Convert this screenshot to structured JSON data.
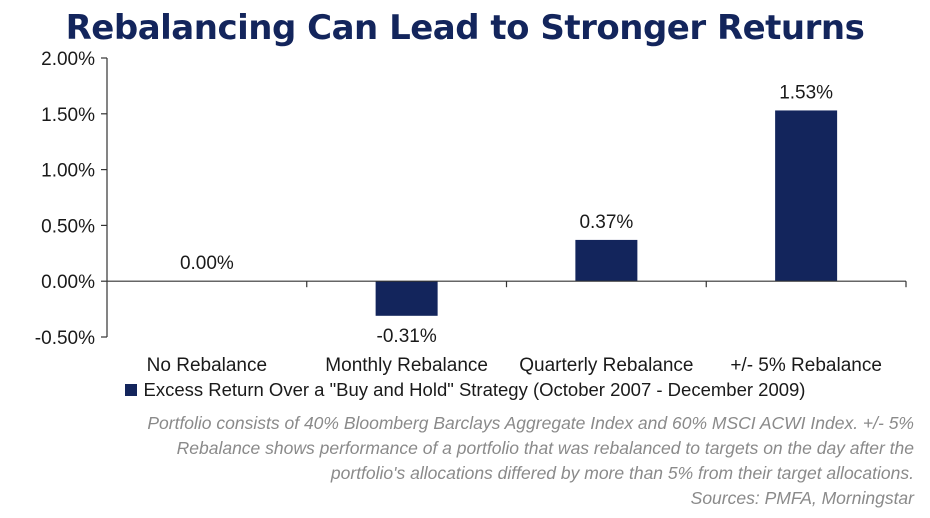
{
  "chart_data": {
    "type": "bar",
    "title": "Rebalancing Can Lead to Stronger Returns",
    "categories": [
      "No Rebalance",
      "Monthly Rebalance",
      "Quarterly Rebalance",
      "+/- 5% Rebalance"
    ],
    "series": [
      {
        "name": "Excess Return Over a \"Buy and Hold\" Strategy (October 2007 - December 2009)",
        "values": [
          0.0,
          -0.31,
          0.37,
          1.53
        ],
        "labels": [
          "0.00%",
          "-0.31%",
          "0.37%",
          "1.53%"
        ],
        "color": "#13255c"
      }
    ],
    "ylim": [
      -0.5,
      2.0
    ],
    "yticks": [
      2.0,
      1.5,
      1.0,
      0.5,
      0.0,
      -0.5
    ],
    "ytick_labels": [
      "2.00%",
      "1.50%",
      "1.00%",
      "0.50%",
      "0.00%",
      "-0.50%"
    ],
    "xlabel": "",
    "ylabel": "",
    "grid": false,
    "legend": "bottom"
  },
  "footnote": {
    "lines": [
      "Portfolio consists of 40% Bloomberg Barclays Aggregate Index and 60% MSCI ACWI Index. +/- 5%",
      "Rebalance shows performance of a portfolio that was rebalanced to targets on the day after the",
      "portfolio's allocations differed by more than 5% from their target allocations."
    ],
    "sources": "Sources: PMFA, Morningstar"
  },
  "colors": {
    "title": "#13255c",
    "bar": "#13255c",
    "footnote": "#8a8a8a"
  }
}
